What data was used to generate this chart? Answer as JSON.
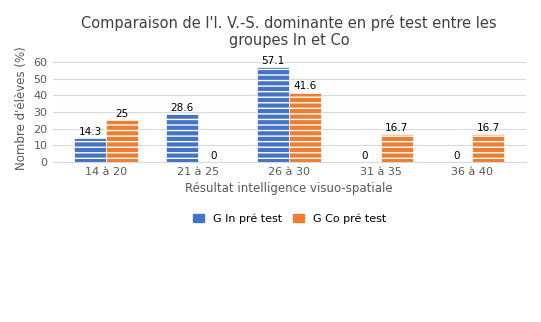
{
  "title_line1": "Comparaison de l'I. V.-S. dominante en pré test entre les",
  "title_line2": "groupes In et Co",
  "categories": [
    "14 à 20",
    "21 à 25",
    "26 à 30",
    "31 à 35",
    "36 à 40"
  ],
  "group_in": [
    14.3,
    28.6,
    57.1,
    0,
    0
  ],
  "group_co": [
    25,
    0,
    41.6,
    16.7,
    16.7
  ],
  "color_in": "#4472C4",
  "color_co": "#ED7D31",
  "xlabel": "Résultat intelligence visuo-spatiale",
  "ylabel": "Nombre d'élèves (%)",
  "ylim": [
    0,
    65
  ],
  "yticks": [
    0,
    10,
    20,
    30,
    40,
    50,
    60
  ],
  "legend_in": "G In pré test",
  "legend_co": "G Co pré test",
  "bar_width": 0.35,
  "title_fontsize": 10.5,
  "axis_label_fontsize": 8.5,
  "tick_fontsize": 8,
  "legend_fontsize": 8,
  "annotation_fontsize": 7.5
}
